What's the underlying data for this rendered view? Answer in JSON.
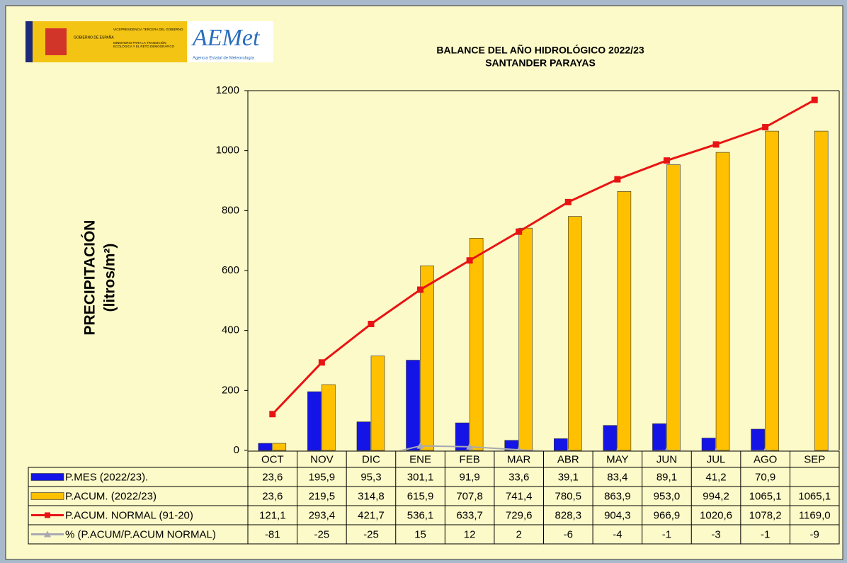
{
  "header": {
    "gov_name": "GOBIERNO DE ESPAÑA",
    "vice": "VICEPRESIDENCIA TERCERA DEL GOBIERNO",
    "ministry": "MINISTERIO PARA LA TRANSICIÓN ECOLÓGICA Y EL RETO DEMOGRÁFICO",
    "aemet": "AEMet",
    "aemet_full": "Agencia Estatal de Meteorología"
  },
  "chart_data": {
    "type": "bar_line_table",
    "title": "BALANCE DEL AÑO HIDROLÓGICO 2022/23",
    "subtitle": "SANTANDER PARAYAS",
    "ylabel_lines": [
      "PRECIPITACIÓN",
      "(litros/m²)"
    ],
    "ylim": [
      0,
      1200
    ],
    "yticks": [
      0,
      200,
      400,
      600,
      800,
      1000,
      1200
    ],
    "categories": [
      "OCT",
      "NOV",
      "DIC",
      "ENE",
      "FEB",
      "MAR",
      "ABR",
      "MAY",
      "JUN",
      "JUL",
      "AGO",
      "SEP"
    ],
    "series": [
      {
        "name": "P.MES (2022/23).",
        "kind": "bar",
        "color": "#1414e6",
        "values": [
          23.6,
          195.9,
          95.3,
          301.1,
          91.9,
          33.6,
          39.1,
          83.4,
          89.1,
          41.2,
          70.9,
          null
        ],
        "value_labels": [
          "23,6",
          "195,9",
          "95,3",
          "301,1",
          "91,9",
          "33,6",
          "39,1",
          "83,4",
          "89,1",
          "41,2",
          "70,9",
          null
        ]
      },
      {
        "name": "P.ACUM. (2022/23)",
        "kind": "bar",
        "color": "#ffc000",
        "values": [
          23.6,
          219.5,
          314.8,
          615.9,
          707.8,
          741.4,
          780.5,
          863.9,
          953.0,
          994.2,
          1065.1,
          1065.1
        ],
        "value_labels": [
          "23,6",
          "219,5",
          "314,8",
          "615,9",
          "707,8",
          "741,4",
          "780,5",
          "863,9",
          "953,0",
          "994,2",
          "1065,1",
          "1065,1"
        ]
      },
      {
        "name": "P.ACUM. NORMAL (91-20)",
        "kind": "line",
        "marker": "square",
        "color": "#e81414",
        "values": [
          121.1,
          293.4,
          421.7,
          536.1,
          633.7,
          729.6,
          828.3,
          904.3,
          966.9,
          1020.6,
          1078.2,
          1169.0
        ],
        "value_labels": [
          "121,1",
          "293,4",
          "421,7",
          "536,1",
          "633,7",
          "729,6",
          "828,3",
          "904,3",
          "966,9",
          "1020,6",
          "1078,2",
          "1169,0"
        ]
      },
      {
        "name": "% (P.ACUM/P.ACUM NORMAL)",
        "kind": "line",
        "marker": "triangle",
        "color": "#a8a8b4",
        "values": [
          -81,
          -25,
          -25,
          15,
          12,
          2,
          -6,
          -4,
          -1,
          -3,
          -1,
          -9
        ]
      }
    ]
  }
}
